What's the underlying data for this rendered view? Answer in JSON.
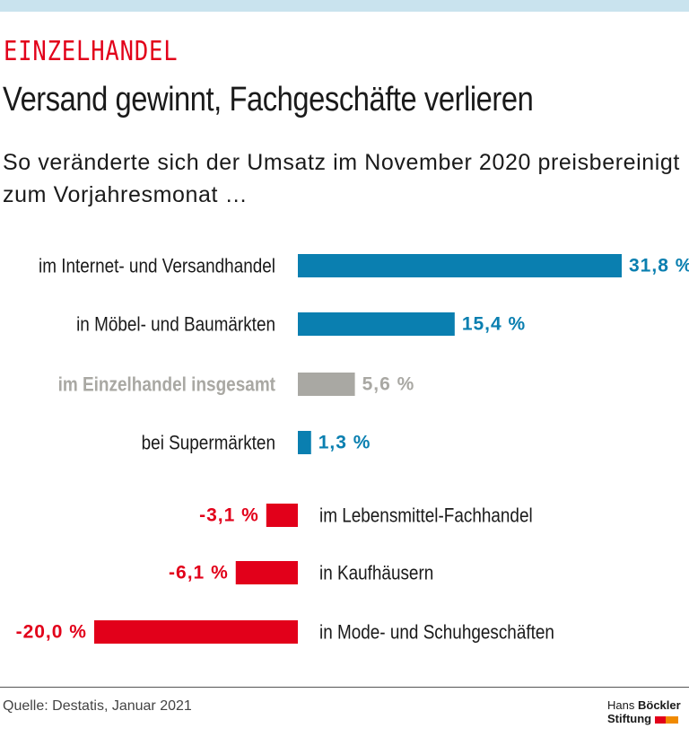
{
  "header": {
    "kicker": "EINZELHANDEL",
    "title": "Versand gewinnt, Fachgeschäfte verlieren",
    "subtitle": "So veränderte sich der Umsatz im November 2020 preis­bereinigt zum Vorjahresmonat …"
  },
  "chart_data": {
    "type": "bar",
    "orientation": "horizontal",
    "categories": [
      "im Internet- und Versandhandel",
      "in Möbel- und Baumärkten",
      "im Einzelhandel insgesamt",
      "bei Supermärkten",
      "im Lebensmittel-Fachhandel",
      "in Kaufhäusern",
      "in Mode- und Schuhgeschäften"
    ],
    "values": [
      31.8,
      15.4,
      5.6,
      1.3,
      -3.1,
      -6.1,
      -20.0
    ],
    "value_labels": [
      "31,8 %",
      "15,4 %",
      "5,6 %",
      "1,3 %",
      "-3,1 %",
      "-6,1 %",
      "-20,0 %"
    ],
    "highlight_index": 2,
    "colors": {
      "positive": "#0a7fb0",
      "total": "#a9a8a3",
      "negative": "#e2001a"
    },
    "xlim": [
      -20.5,
      32
    ]
  },
  "footer": {
    "source": "Quelle: Destatis, Januar 2021",
    "logo_line1_a": "Hans",
    "logo_line1_b": "Böckler",
    "logo_line2": "Stiftung"
  }
}
